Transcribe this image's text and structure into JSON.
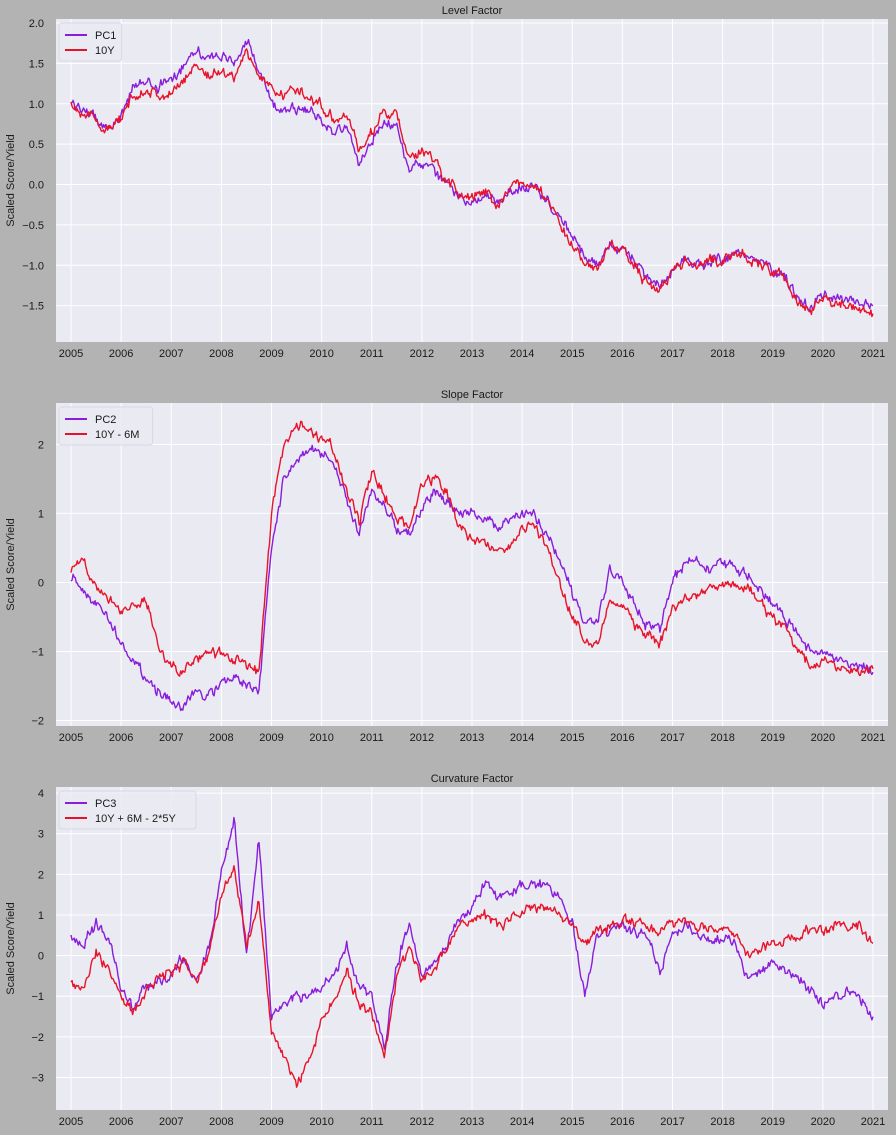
{
  "figure": {
    "background": "#b3b3b3",
    "plot_background": "#eaeaf2",
    "grid_color": "#ffffff"
  },
  "chart_data": [
    {
      "type": "line",
      "title": "Level Factor",
      "xlabel": "",
      "ylabel": "Scaled Score/Yield",
      "xlim": [
        2004.7,
        2021.3
      ],
      "ylim": [
        -1.95,
        2.05
      ],
      "xticks": [
        2005,
        2006,
        2007,
        2008,
        2009,
        2010,
        2011,
        2012,
        2013,
        2014,
        2015,
        2016,
        2017,
        2018,
        2019,
        2020,
        2021
      ],
      "xtick_labels": [
        "2005",
        "2006",
        "2007",
        "2008",
        "2009",
        "2010",
        "2011",
        "2012",
        "2013",
        "2014",
        "2015",
        "2016",
        "2017",
        "2018",
        "2019",
        "2020",
        "2021"
      ],
      "yticks": [
        -1.5,
        -1.0,
        -0.5,
        0.0,
        0.5,
        1.0,
        1.5,
        2.0
      ],
      "ytick_labels": [
        "−1.5",
        "−1.0",
        "−0.5",
        "0.0",
        "0.5",
        "1.0",
        "1.5",
        "2.0"
      ],
      "grid": true,
      "legend_position": "top-left",
      "x": [
        2005.0,
        2005.25,
        2005.5,
        2005.75,
        2006.0,
        2006.25,
        2006.5,
        2006.75,
        2007.0,
        2007.25,
        2007.5,
        2007.75,
        2008.0,
        2008.25,
        2008.5,
        2008.75,
        2009.0,
        2009.25,
        2009.5,
        2009.75,
        2010.0,
        2010.25,
        2010.5,
        2010.75,
        2011.0,
        2011.25,
        2011.5,
        2011.75,
        2012.0,
        2012.25,
        2012.5,
        2012.75,
        2013.0,
        2013.25,
        2013.5,
        2013.75,
        2014.0,
        2014.25,
        2014.5,
        2014.75,
        2015.0,
        2015.25,
        2015.5,
        2015.75,
        2016.0,
        2016.25,
        2016.5,
        2016.75,
        2017.0,
        2017.25,
        2017.5,
        2017.75,
        2018.0,
        2018.25,
        2018.5,
        2018.75,
        2019.0,
        2019.25,
        2019.5,
        2019.75,
        2020.0,
        2020.25,
        2020.5,
        2020.75,
        2021.0
      ],
      "series": [
        {
          "name": "PC1",
          "color": "#8a1ddb",
          "values": [
            1.0,
            0.95,
            0.8,
            0.7,
            0.85,
            1.2,
            1.3,
            1.2,
            1.3,
            1.5,
            1.7,
            1.55,
            1.6,
            1.5,
            1.8,
            1.4,
            1.0,
            0.95,
            0.95,
            0.9,
            0.8,
            0.65,
            0.7,
            0.25,
            0.55,
            0.8,
            0.7,
            0.2,
            0.25,
            0.15,
            0.0,
            -0.15,
            -0.2,
            -0.15,
            -0.25,
            -0.1,
            0.0,
            -0.05,
            -0.2,
            -0.4,
            -0.65,
            -0.9,
            -1.0,
            -0.75,
            -0.8,
            -0.95,
            -1.2,
            -1.25,
            -1.05,
            -0.95,
            -1.0,
            -0.95,
            -0.95,
            -0.85,
            -0.9,
            -0.95,
            -1.05,
            -1.15,
            -1.4,
            -1.5,
            -1.35,
            -1.4,
            -1.45,
            -1.45,
            -1.5
          ]
        },
        {
          "name": "10Y",
          "color": "#e8132a",
          "values": [
            1.0,
            0.9,
            0.78,
            0.68,
            0.8,
            1.1,
            1.2,
            1.1,
            1.1,
            1.3,
            1.5,
            1.35,
            1.4,
            1.35,
            1.65,
            1.35,
            1.2,
            1.1,
            1.2,
            1.05,
            1.0,
            0.8,
            0.9,
            0.4,
            0.65,
            0.9,
            0.85,
            0.3,
            0.4,
            0.3,
            0.05,
            -0.1,
            -0.15,
            -0.1,
            -0.25,
            -0.05,
            0.05,
            -0.05,
            -0.2,
            -0.45,
            -0.75,
            -1.0,
            -1.05,
            -0.75,
            -0.8,
            -1.0,
            -1.25,
            -1.3,
            -1.05,
            -0.95,
            -1.0,
            -0.95,
            -0.95,
            -0.85,
            -0.9,
            -1.0,
            -1.05,
            -1.2,
            -1.45,
            -1.6,
            -1.4,
            -1.45,
            -1.5,
            -1.55,
            -1.6
          ]
        }
      ]
    },
    {
      "type": "line",
      "title": "Slope Factor",
      "xlabel": "",
      "ylabel": "Scaled Score/Yield",
      "xlim": [
        2004.7,
        2021.3
      ],
      "ylim": [
        -2.08,
        2.6
      ],
      "xticks": [
        2005,
        2006,
        2007,
        2008,
        2009,
        2010,
        2011,
        2012,
        2013,
        2014,
        2015,
        2016,
        2017,
        2018,
        2019,
        2020,
        2021
      ],
      "xtick_labels": [
        "2005",
        "2006",
        "2007",
        "2008",
        "2009",
        "2010",
        "2011",
        "2012",
        "2013",
        "2014",
        "2015",
        "2016",
        "2017",
        "2018",
        "2019",
        "2020",
        "2021"
      ],
      "yticks": [
        -2,
        -1,
        0,
        1,
        2
      ],
      "ytick_labels": [
        "−2",
        "−1",
        "0",
        "1",
        "2"
      ],
      "grid": true,
      "legend_position": "top-left",
      "x": [
        2005.0,
        2005.25,
        2005.5,
        2005.75,
        2006.0,
        2006.25,
        2006.5,
        2006.75,
        2007.0,
        2007.25,
        2007.5,
        2007.75,
        2008.0,
        2008.25,
        2008.5,
        2008.75,
        2009.0,
        2009.25,
        2009.5,
        2009.75,
        2010.0,
        2010.25,
        2010.5,
        2010.75,
        2011.0,
        2011.25,
        2011.5,
        2011.75,
        2012.0,
        2012.25,
        2012.5,
        2012.75,
        2013.0,
        2013.25,
        2013.5,
        2013.75,
        2014.0,
        2014.25,
        2014.5,
        2014.75,
        2015.0,
        2015.25,
        2015.5,
        2015.75,
        2016.0,
        2016.25,
        2016.5,
        2016.75,
        2017.0,
        2017.25,
        2017.5,
        2017.75,
        2018.0,
        2018.25,
        2018.5,
        2018.75,
        2019.0,
        2019.25,
        2019.5,
        2019.75,
        2020.0,
        2020.25,
        2020.5,
        2020.75,
        2021.0
      ],
      "series": [
        {
          "name": "PC2",
          "color": "#8a1ddb",
          "values": [
            0.1,
            -0.1,
            -0.3,
            -0.5,
            -0.9,
            -1.1,
            -1.4,
            -1.6,
            -1.75,
            -1.8,
            -1.6,
            -1.6,
            -1.5,
            -1.35,
            -1.5,
            -1.6,
            0.5,
            1.5,
            1.8,
            1.9,
            1.85,
            1.7,
            1.2,
            0.7,
            1.3,
            1.1,
            0.8,
            0.7,
            1.1,
            1.3,
            1.2,
            1.0,
            1.0,
            0.9,
            0.8,
            0.9,
            1.0,
            1.0,
            0.7,
            0.3,
            -0.2,
            -0.6,
            -0.6,
            0.2,
            0.0,
            -0.3,
            -0.6,
            -0.7,
            0.0,
            0.3,
            0.3,
            0.2,
            0.3,
            0.2,
            0.1,
            -0.1,
            -0.3,
            -0.5,
            -0.8,
            -1.0,
            -1.0,
            -1.1,
            -1.2,
            -1.2,
            -1.3
          ]
        },
        {
          "name": "10Y - 6M",
          "color": "#e8132a",
          "values": [
            0.2,
            0.3,
            0.0,
            -0.2,
            -0.4,
            -0.3,
            -0.3,
            -0.9,
            -1.2,
            -1.3,
            -1.1,
            -1.0,
            -1.05,
            -1.1,
            -1.2,
            -1.3,
            1.0,
            2.0,
            2.25,
            2.2,
            2.1,
            1.9,
            1.3,
            0.9,
            1.6,
            1.3,
            0.9,
            0.8,
            1.4,
            1.5,
            1.3,
            0.8,
            0.6,
            0.6,
            0.4,
            0.55,
            0.8,
            0.8,
            0.5,
            0.0,
            -0.5,
            -0.8,
            -0.9,
            -0.2,
            -0.3,
            -0.6,
            -0.8,
            -0.9,
            -0.4,
            -0.2,
            -0.2,
            -0.1,
            -0.05,
            -0.05,
            -0.1,
            -0.3,
            -0.5,
            -0.7,
            -1.0,
            -1.2,
            -1.1,
            -1.2,
            -1.25,
            -1.3,
            -1.25
          ]
        }
      ]
    },
    {
      "type": "line",
      "title": "Curvature Factor",
      "xlabel": "",
      "ylabel": "Scaled Score/Yield",
      "xlim": [
        2004.7,
        2021.3
      ],
      "ylim": [
        -3.8,
        4.15
      ],
      "xticks": [
        2005,
        2006,
        2007,
        2008,
        2009,
        2010,
        2011,
        2012,
        2013,
        2014,
        2015,
        2016,
        2017,
        2018,
        2019,
        2020,
        2021
      ],
      "xtick_labels": [
        "2005",
        "2006",
        "2007",
        "2008",
        "2009",
        "2010",
        "2011",
        "2012",
        "2013",
        "2014",
        "2015",
        "2016",
        "2017",
        "2018",
        "2019",
        "2020",
        "2021"
      ],
      "yticks": [
        -3,
        -2,
        -1,
        0,
        1,
        2,
        3,
        4
      ],
      "ytick_labels": [
        "−3",
        "−2",
        "−1",
        "0",
        "1",
        "2",
        "3",
        "4"
      ],
      "grid": true,
      "legend_position": "top-left",
      "x": [
        2005.0,
        2005.25,
        2005.5,
        2005.75,
        2006.0,
        2006.25,
        2006.5,
        2006.75,
        2007.0,
        2007.25,
        2007.5,
        2007.75,
        2008.0,
        2008.25,
        2008.5,
        2008.75,
        2009.0,
        2009.25,
        2009.5,
        2009.75,
        2010.0,
        2010.25,
        2010.5,
        2010.75,
        2011.0,
        2011.25,
        2011.5,
        2011.75,
        2012.0,
        2012.25,
        2012.5,
        2012.75,
        2013.0,
        2013.25,
        2013.5,
        2013.75,
        2014.0,
        2014.25,
        2014.5,
        2014.75,
        2015.0,
        2015.25,
        2015.5,
        2015.75,
        2016.0,
        2016.25,
        2016.5,
        2016.75,
        2017.0,
        2017.25,
        2017.5,
        2017.75,
        2018.0,
        2018.25,
        2018.5,
        2018.75,
        2019.0,
        2019.25,
        2019.5,
        2019.75,
        2020.0,
        2020.25,
        2020.5,
        2020.75,
        2021.0
      ],
      "series": [
        {
          "name": "PC3",
          "color": "#8a1ddb",
          "values": [
            0.5,
            0.2,
            0.8,
            0.4,
            -0.8,
            -1.3,
            -0.8,
            -0.6,
            -0.5,
            0.0,
            -0.6,
            0.2,
            2.0,
            3.4,
            0.0,
            2.8,
            -1.5,
            -1.2,
            -1.0,
            -1.0,
            -0.8,
            -0.5,
            0.3,
            -0.8,
            -1.0,
            -2.2,
            -0.2,
            0.8,
            -0.5,
            -0.2,
            0.3,
            0.8,
            1.2,
            1.8,
            1.5,
            1.5,
            1.8,
            1.7,
            1.8,
            1.4,
            0.8,
            -1.0,
            0.4,
            0.6,
            0.8,
            0.5,
            0.6,
            -0.4,
            0.5,
            0.8,
            0.5,
            0.4,
            0.4,
            0.3,
            -0.5,
            -0.3,
            -0.2,
            -0.3,
            -0.5,
            -0.9,
            -1.2,
            -1.0,
            -0.9,
            -1.1,
            -1.5
          ]
        },
        {
          "name": "10Y + 6M - 2*5Y",
          "color": "#e8132a",
          "values": [
            -0.6,
            -0.9,
            0.0,
            -0.3,
            -0.9,
            -1.4,
            -0.9,
            -0.5,
            -0.4,
            -0.2,
            -0.7,
            0.0,
            1.5,
            2.2,
            0.2,
            1.4,
            -1.9,
            -2.5,
            -3.2,
            -2.6,
            -1.6,
            -1.2,
            -0.4,
            -1.2,
            -1.4,
            -2.5,
            -0.5,
            0.2,
            -0.6,
            -0.3,
            0.2,
            0.7,
            0.9,
            1.0,
            0.8,
            0.9,
            1.1,
            1.2,
            1.1,
            1.0,
            0.8,
            0.3,
            0.6,
            0.7,
            0.9,
            0.8,
            0.8,
            0.5,
            0.8,
            0.9,
            0.7,
            0.7,
            0.6,
            0.5,
            0.0,
            0.2,
            0.3,
            0.4,
            0.5,
            0.6,
            0.6,
            0.8,
            0.7,
            0.7,
            0.3
          ]
        }
      ]
    }
  ]
}
